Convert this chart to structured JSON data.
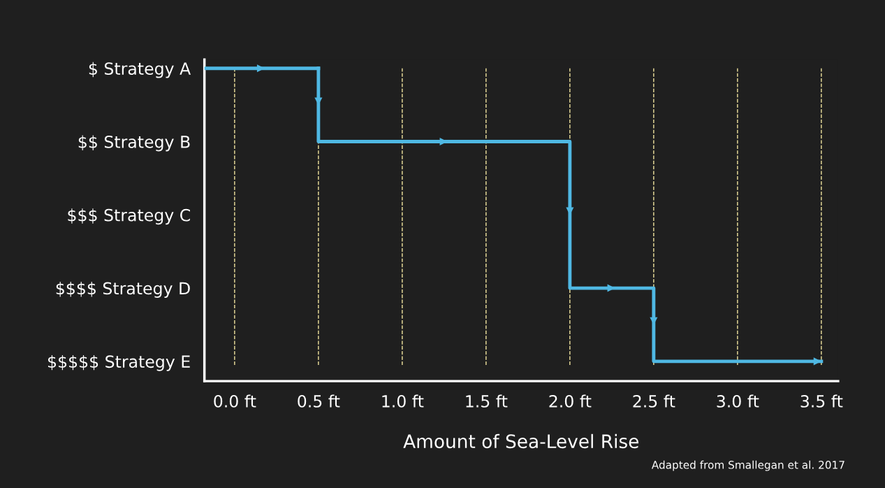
{
  "chart_data": {
    "type": "step",
    "orientation": "horizontal",
    "xlabel": "Amount of Sea-Level Rise",
    "categories": [
      "$ Strategy A",
      "$$ Strategy B",
      "$$$ Strategy C",
      "$$$$ Strategy D",
      "$$$$$ Strategy E"
    ],
    "series": [
      {
        "color": "#4fb8e3",
        "values": [
          0.5,
          2.0,
          null,
          2.5,
          3.5
        ]
      }
    ],
    "xlim": [
      -0.18,
      3.6
    ],
    "xticks": [
      {
        "value": 0,
        "label": "0.0 ft"
      },
      {
        "value": 0.5,
        "label": "0.5 ft"
      },
      {
        "value": 1.0,
        "label": "1.0 ft"
      },
      {
        "value": 1.5,
        "label": "1.5 ft"
      },
      {
        "value": 2.0,
        "label": "2.0 ft"
      },
      {
        "value": 2.5,
        "label": "2.5 ft"
      },
      {
        "value": 3.0,
        "label": "3.0 ft"
      },
      {
        "value": 3.5,
        "label": "3.5 ft"
      }
    ],
    "grid": "x",
    "line_style": "solid",
    "annotations": [
      "Adapted from Smallegan et al. 2017"
    ]
  }
}
